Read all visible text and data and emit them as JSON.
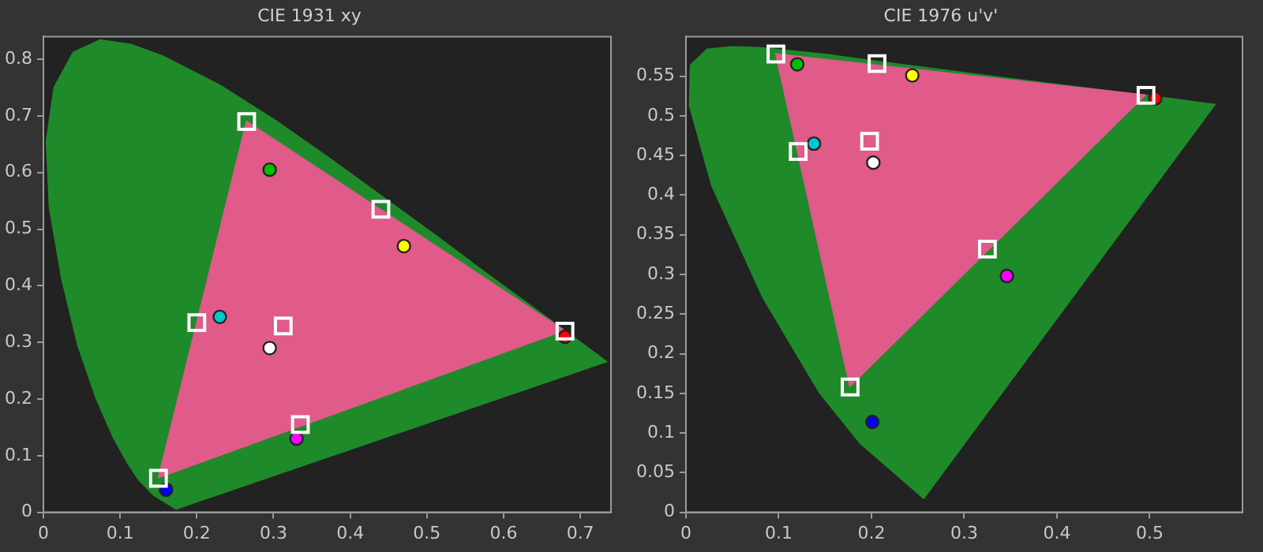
{
  "chart_data": [
    {
      "type": "scatter",
      "title": "CIE 1931 xy",
      "xlim": [
        0,
        0.74
      ],
      "ylim": [
        0,
        0.84
      ],
      "xticks": [
        0,
        0.1,
        0.2,
        0.3,
        0.4,
        0.5,
        0.6,
        0.7
      ],
      "yticks": [
        0,
        0.1,
        0.2,
        0.3,
        0.4,
        0.5,
        0.6,
        0.7,
        0.8
      ],
      "legend": false,
      "series": [
        {
          "type": "area",
          "color": "#1f8a2a",
          "x": [
            0.174,
            0.144,
            0.124,
            0.11,
            0.091,
            0.069,
            0.045,
            0.024,
            0.008,
            0.004,
            0.014,
            0.039,
            0.074,
            0.114,
            0.155,
            0.23,
            0.302,
            0.373,
            0.444,
            0.513,
            0.575,
            0.627,
            0.692,
            0.735
          ],
          "values": [
            0.005,
            0.03,
            0.058,
            0.087,
            0.133,
            0.201,
            0.295,
            0.413,
            0.538,
            0.655,
            0.75,
            0.812,
            0.834,
            0.826,
            0.806,
            0.754,
            0.692,
            0.625,
            0.555,
            0.487,
            0.424,
            0.373,
            0.308,
            0.265
          ]
        },
        {
          "type": "area",
          "color": "#e05a8a",
          "x": [
            0.68,
            0.265,
            0.15
          ],
          "values": [
            0.32,
            0.69,
            0.06
          ]
        },
        {
          "marker": "square",
          "color": "#ffffff",
          "x": [
            0.68,
            0.265,
            0.15,
            0.3127,
            0.2,
            0.335,
            0.44
          ],
          "values": [
            0.32,
            0.69,
            0.06,
            0.329,
            0.335,
            0.155,
            0.535
          ]
        },
        {
          "marker": "circle",
          "colors": [
            "#ff0000",
            "#00c000",
            "#0000ff",
            "#ffffff",
            "#00c8c8",
            "#ff00ff",
            "#ffff00"
          ],
          "x": [
            0.68,
            0.295,
            0.16,
            0.295,
            0.23,
            0.33,
            0.47
          ],
          "values": [
            0.31,
            0.605,
            0.04,
            0.29,
            0.345,
            0.13,
            0.47
          ]
        }
      ]
    },
    {
      "type": "scatter",
      "title": "CIE 1976 u'v'",
      "xlim": [
        0,
        0.6
      ],
      "ylim": [
        0,
        0.6
      ],
      "xticks": [
        0,
        0.1,
        0.2,
        0.3,
        0.4,
        0.5
      ],
      "yticks": [
        0,
        0.05,
        0.1,
        0.15,
        0.2,
        0.25,
        0.3,
        0.35,
        0.4,
        0.45,
        0.5,
        0.55
      ],
      "legend": false,
      "series": [
        {
          "type": "area",
          "color": "#1f8a2a",
          "x": [
            0.257,
            0.188,
            0.144,
            0.083,
            0.028,
            0.004,
            0.005,
            0.023,
            0.05,
            0.079,
            0.113,
            0.153,
            0.203,
            0.262,
            0.404,
            0.52,
            0.571
          ],
          "values": [
            0.017,
            0.087,
            0.151,
            0.271,
            0.412,
            0.513,
            0.564,
            0.584,
            0.587,
            0.586,
            0.582,
            0.577,
            0.569,
            0.56,
            0.539,
            0.522,
            0.514
          ]
        },
        {
          "type": "area",
          "color": "#e05a8a",
          "x": [
            0.496,
            0.097,
            0.177
          ],
          "values": [
            0.526,
            0.578,
            0.158
          ]
        },
        {
          "marker": "square",
          "color": "#ffffff",
          "x": [
            0.496,
            0.097,
            0.177,
            0.198,
            0.121,
            0.325,
            0.206
          ],
          "values": [
            0.526,
            0.578,
            0.158,
            0.468,
            0.455,
            0.332,
            0.566
          ]
        },
        {
          "marker": "circle",
          "colors": [
            "#ff0000",
            "#00c000",
            "#0000ff",
            "#ffffff",
            "#00c8c8",
            "#ff00ff",
            "#ffff00"
          ],
          "x": [
            0.506,
            0.12,
            0.201,
            0.202,
            0.138,
            0.346,
            0.244
          ],
          "values": [
            0.522,
            0.565,
            0.114,
            0.441,
            0.465,
            0.298,
            0.551
          ]
        }
      ]
    }
  ]
}
